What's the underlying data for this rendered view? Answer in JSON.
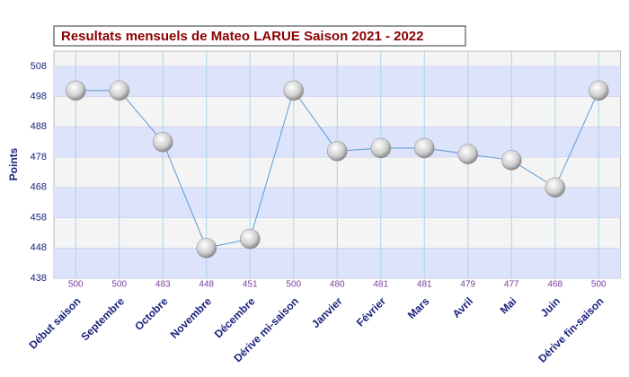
{
  "chart_data": {
    "type": "line",
    "title": "Resultats mensuels de Mateo LARUE Saison 2021 - 2022",
    "y_label": "Points",
    "categories": [
      "Début saison",
      "Septembre",
      "Octobre",
      "Novembre",
      "Décembre",
      "Dérive mi-saison",
      "Janvier",
      "Février",
      "Mars",
      "Avril",
      "Mai",
      "Juin",
      "Dérive fin-saison"
    ],
    "values": [
      500,
      500,
      483,
      448,
      451,
      500,
      480,
      481,
      481,
      479,
      477,
      468,
      500
    ],
    "color": "#5b9bd5",
    "ylim": [
      438,
      513
    ],
    "yticks": [
      438,
      448,
      458,
      468,
      478,
      488,
      498,
      508
    ],
    "grid": true
  }
}
